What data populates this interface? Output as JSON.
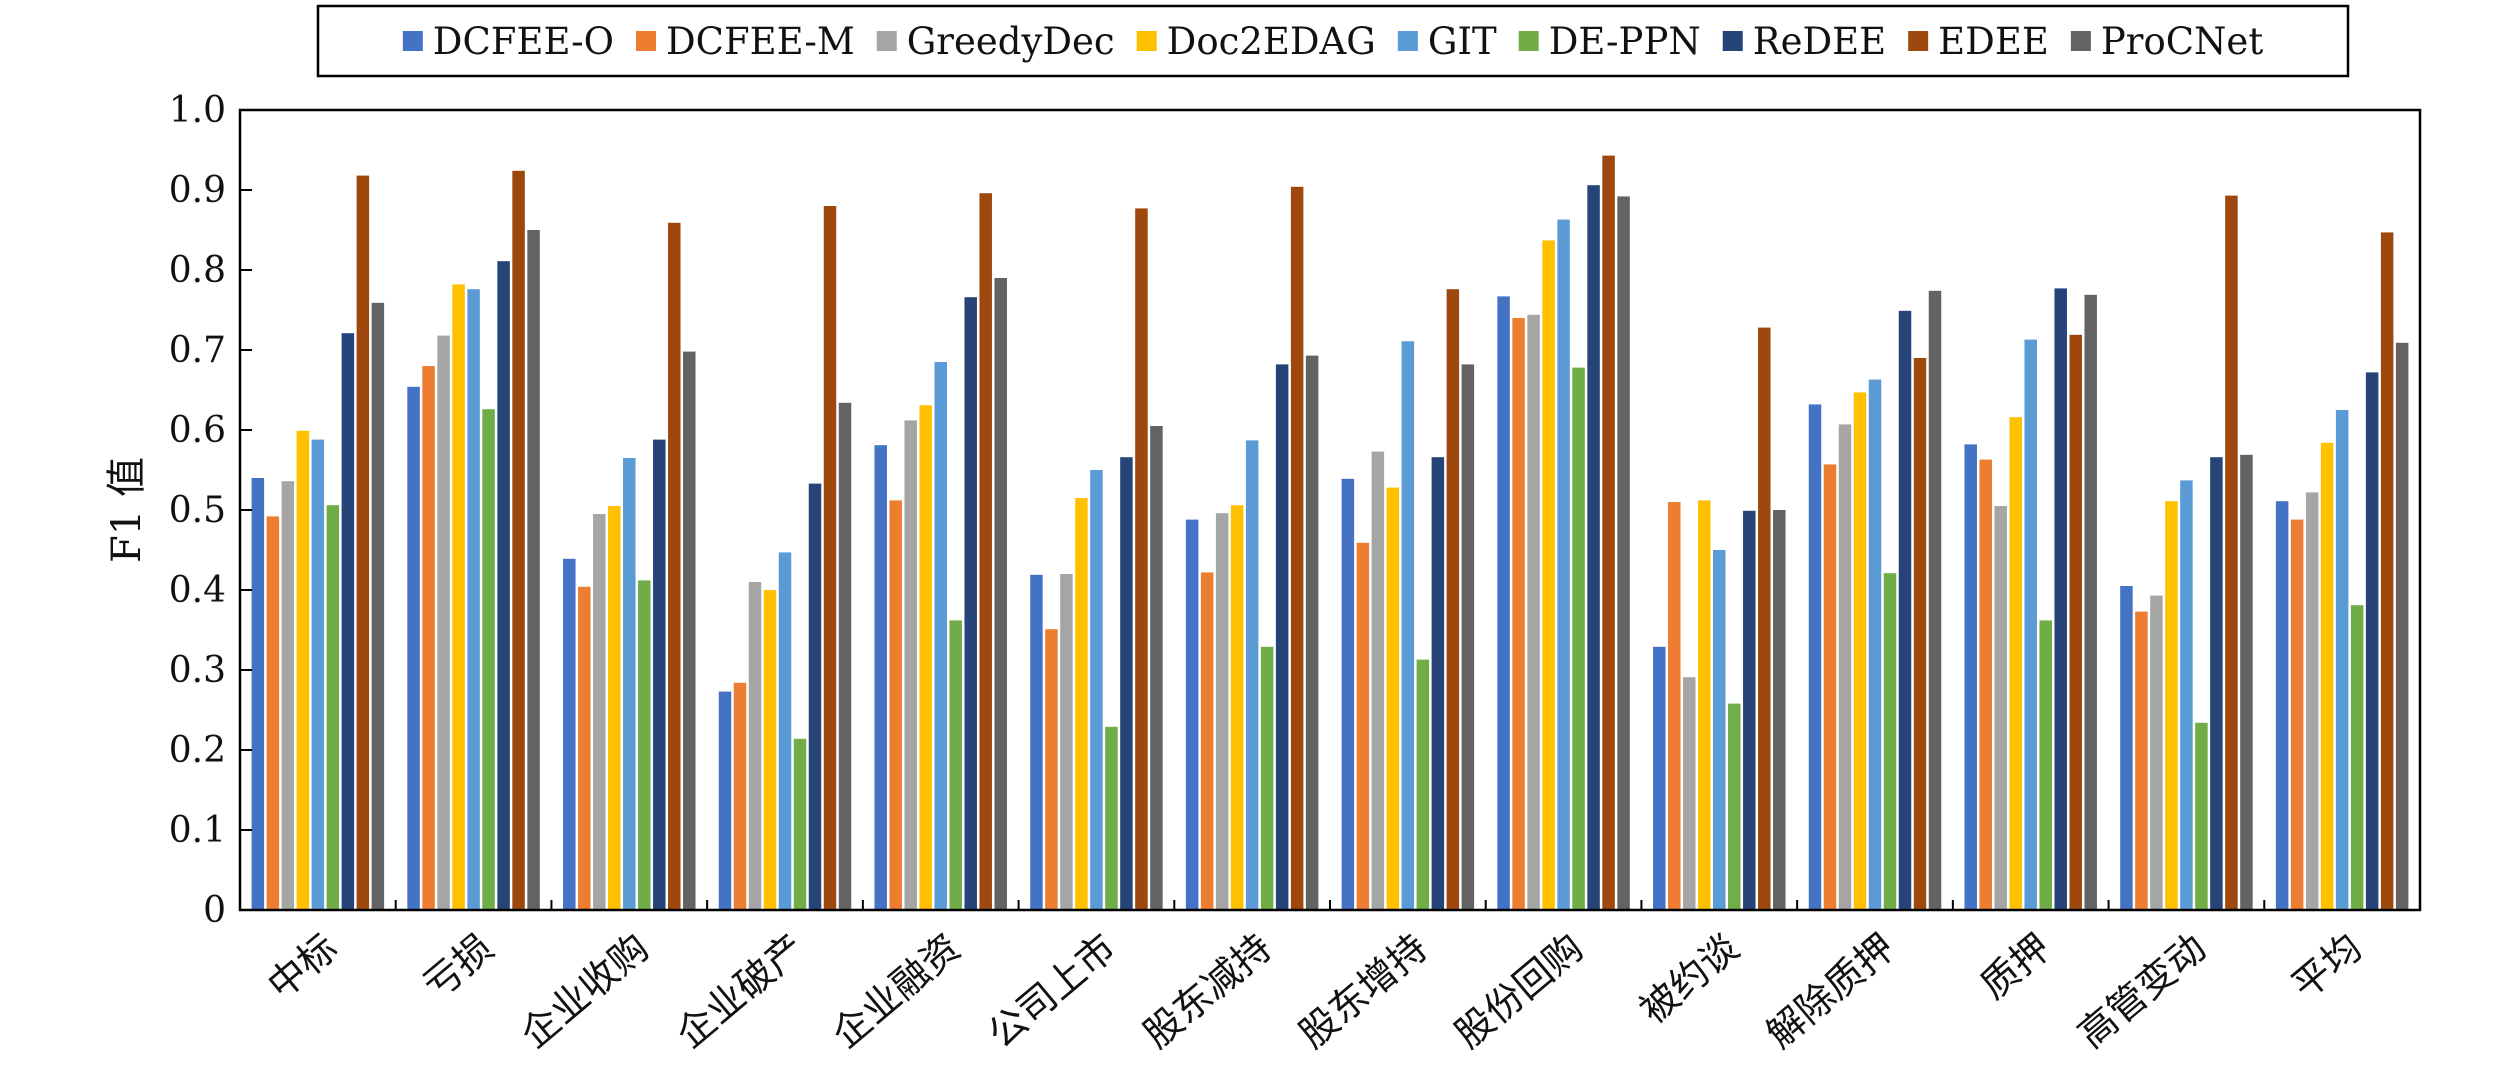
{
  "chart_data": {
    "type": "bar",
    "ylabel": "F1 值",
    "ylim": [
      0,
      1.0
    ],
    "yticks": [
      "0",
      "0.1",
      "0.2",
      "0.3",
      "0.4",
      "0.5",
      "0.6",
      "0.7",
      "0.8",
      "0.9",
      "1.0"
    ],
    "grid": false,
    "legend_position": "top",
    "categories": [
      "中标",
      "亏损",
      "企业收购",
      "企业破产",
      "企业融资",
      "公司上市",
      "股东减持",
      "股东增持",
      "股份回购",
      "被约谈",
      "解除质押",
      "质押",
      "高管变动",
      "平均"
    ],
    "series": [
      {
        "name": "DCFEE-O",
        "color": "#4472C4",
        "values": [
          0.54,
          0.654,
          0.439,
          0.273,
          0.581,
          0.419,
          0.488,
          0.539,
          0.767,
          0.329,
          0.632,
          0.582,
          0.405,
          0.511
        ]
      },
      {
        "name": "DCFEE-M",
        "color": "#ED7D31",
        "values": [
          0.492,
          0.68,
          0.404,
          0.284,
          0.512,
          0.351,
          0.422,
          0.459,
          0.74,
          0.51,
          0.557,
          0.563,
          0.373,
          0.488
        ]
      },
      {
        "name": "GreedyDec",
        "color": "#A5A5A5",
        "values": [
          0.536,
          0.718,
          0.495,
          0.41,
          0.612,
          0.42,
          0.496,
          0.573,
          0.744,
          0.291,
          0.607,
          0.505,
          0.393,
          0.522
        ]
      },
      {
        "name": "Doc2EDAG",
        "color": "#FFC000",
        "values": [
          0.599,
          0.782,
          0.505,
          0.4,
          0.631,
          0.515,
          0.506,
          0.528,
          0.837,
          0.512,
          0.647,
          0.616,
          0.511,
          0.584
        ]
      },
      {
        "name": "GIT",
        "color": "#5B9BD5",
        "values": [
          0.588,
          0.776,
          0.565,
          0.447,
          0.685,
          0.55,
          0.587,
          0.711,
          0.863,
          0.45,
          0.663,
          0.713,
          0.537,
          0.625
        ]
      },
      {
        "name": "DE-PPN",
        "color": "#70AD47",
        "values": [
          0.506,
          0.626,
          0.412,
          0.214,
          0.362,
          0.229,
          0.329,
          0.313,
          0.678,
          0.258,
          0.421,
          0.362,
          0.234,
          0.381
        ]
      },
      {
        "name": "ReDEE",
        "color": "#264478",
        "values": [
          0.721,
          0.811,
          0.588,
          0.533,
          0.766,
          0.566,
          0.682,
          0.566,
          0.906,
          0.499,
          0.749,
          0.777,
          0.566,
          0.672
        ]
      },
      {
        "name": "EDEE",
        "color": "#9E480E",
        "values": [
          0.918,
          0.924,
          0.859,
          0.88,
          0.896,
          0.877,
          0.904,
          0.776,
          0.943,
          0.728,
          0.69,
          0.719,
          0.893,
          0.847
        ]
      },
      {
        "name": "ProCNet",
        "color": "#636363",
        "values": [
          0.759,
          0.85,
          0.698,
          0.634,
          0.79,
          0.605,
          0.693,
          0.682,
          0.892,
          0.5,
          0.774,
          0.769,
          0.569,
          0.709
        ]
      }
    ]
  }
}
